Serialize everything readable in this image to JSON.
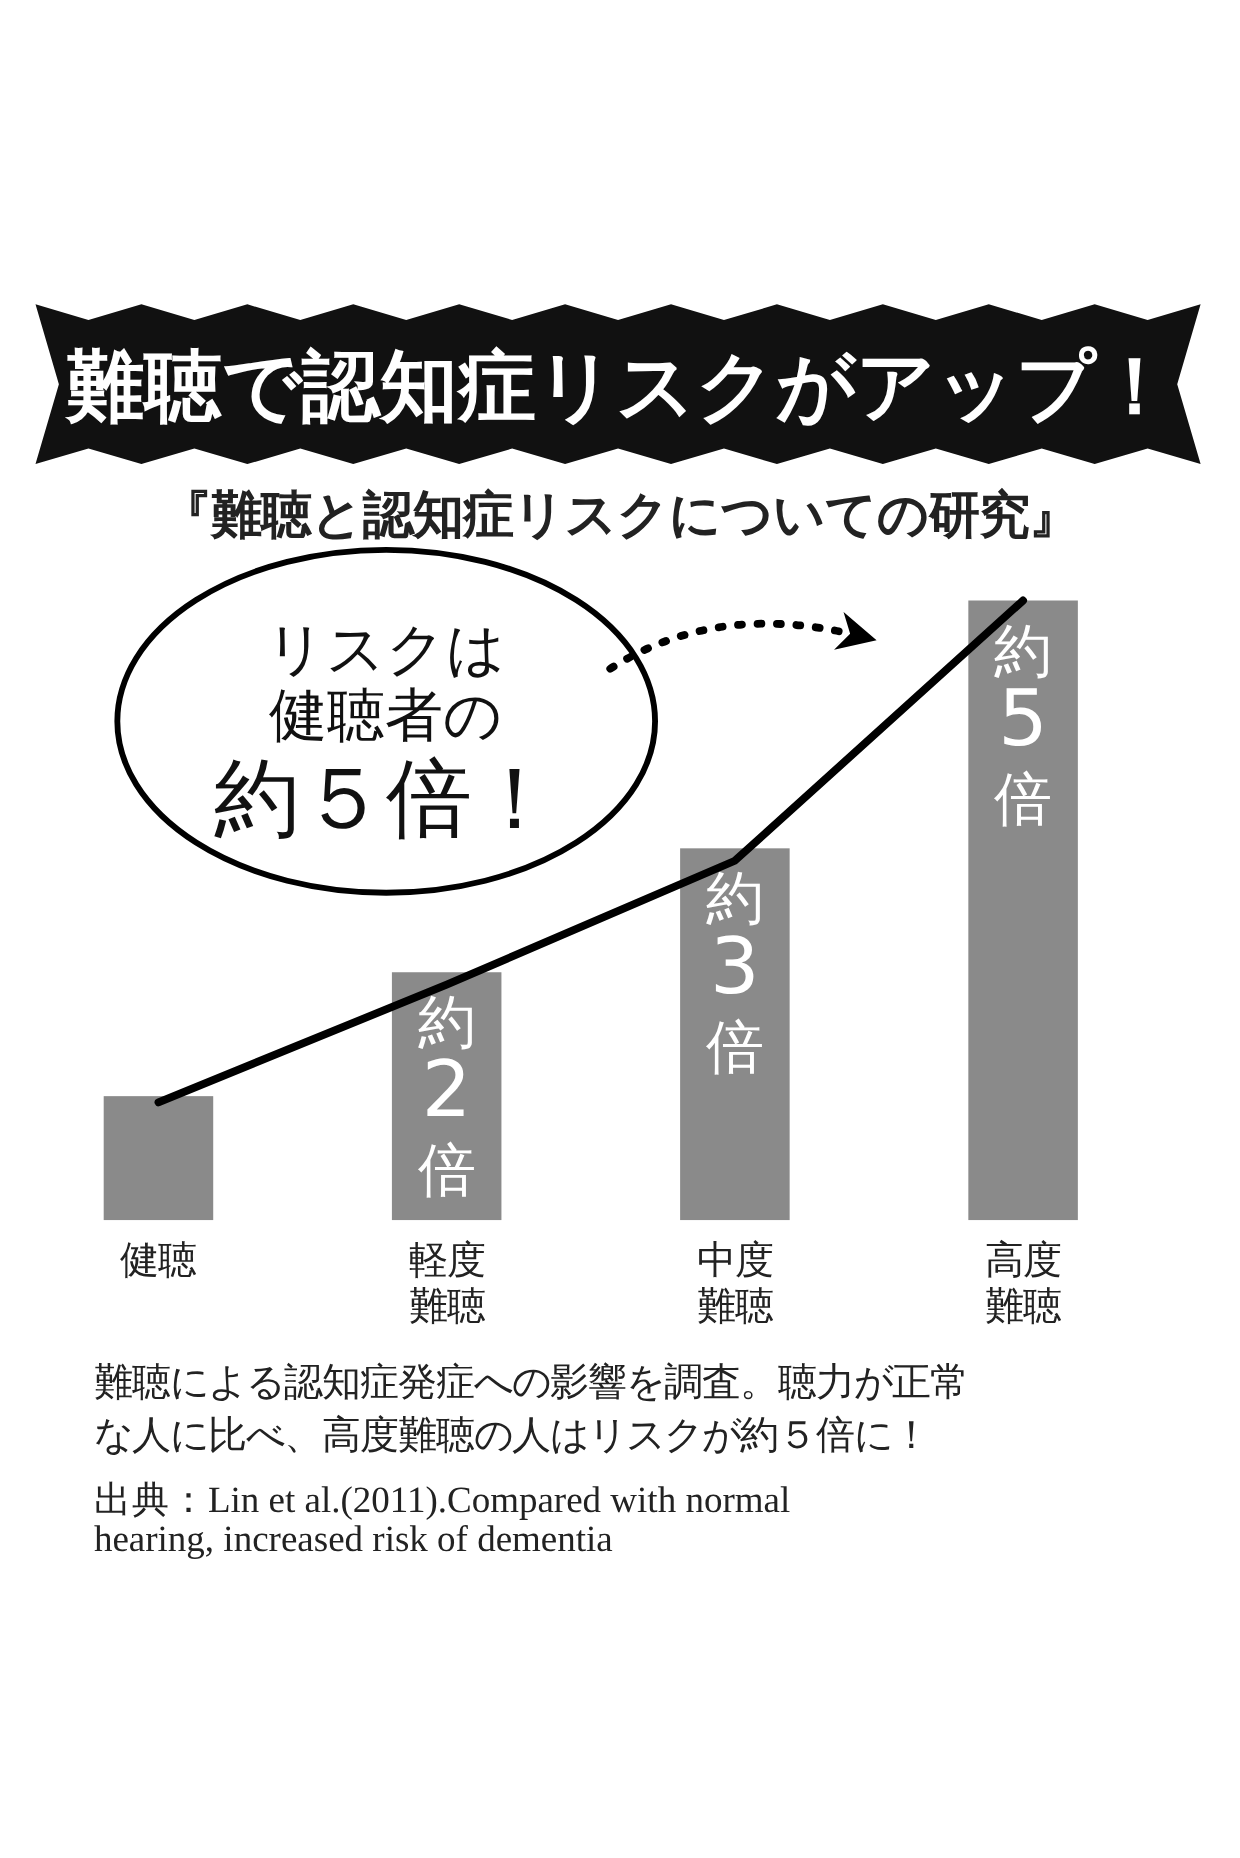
{
  "chart_data": {
    "type": "bar",
    "title": "難聴で認知症リスクがアップ！",
    "subtitle": "『難聴と認知症リスクについての研究』",
    "categories": [
      "健聴",
      "軽度難聴",
      "中度難聴",
      "高度難聴"
    ],
    "series": [
      {
        "color": "#8a8a8a",
        "values": [
          1,
          2,
          3,
          5
        ],
        "value_labels": [
          null,
          "約2倍",
          "約3倍",
          "約5倍"
        ]
      },
      {
        "type": "line",
        "color": "#000000",
        "values": [
          0.95,
          1.9,
          2.9,
          5
        ]
      }
    ],
    "annotations": [
      "リスクは健聴者の約５倍！",
      "難聴による認知症発症への影響を調査。聴力が正常な人に比べ、高度難聴の人はリスクが約５倍に！",
      "出典：Lin et al.(2011).Compared with normal hearing, increased risk of dementia"
    ]
  }
}
